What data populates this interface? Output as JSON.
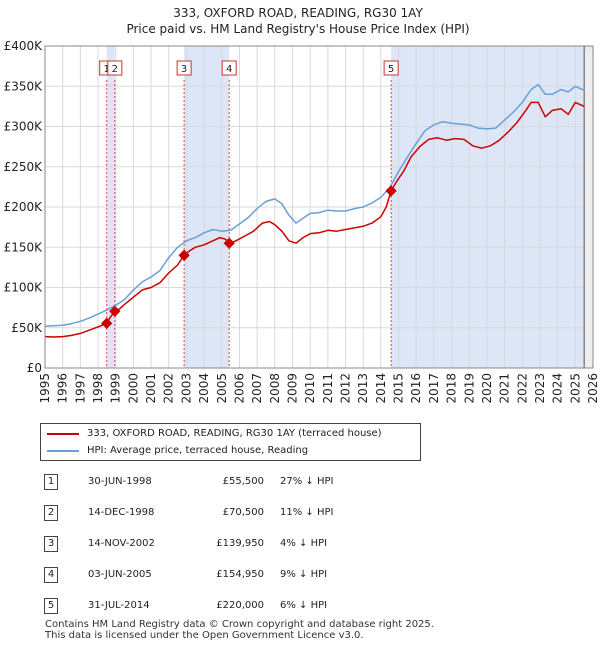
{
  "chart_data": {
    "type": "line",
    "title": "333, OXFORD ROAD, READING, RG30 1AY",
    "subtitle": "Price paid vs. HM Land Registry's House Price Index (HPI)",
    "xlabel": "",
    "ylabel": "",
    "xlim": [
      1995,
      2026
    ],
    "ylim": [
      0,
      400000
    ],
    "grid": true,
    "y_ticks": [
      {
        "value": 0,
        "label": "£0"
      },
      {
        "value": 50000,
        "label": "£50K"
      },
      {
        "value": 100000,
        "label": "£100K"
      },
      {
        "value": 150000,
        "label": "£150K"
      },
      {
        "value": 200000,
        "label": "£200K"
      },
      {
        "value": 250000,
        "label": "£250K"
      },
      {
        "value": 300000,
        "label": "£300K"
      },
      {
        "value": 350000,
        "label": "£350K"
      },
      {
        "value": 400000,
        "label": "£400K"
      }
    ],
    "x_ticks": [
      "1995",
      "1996",
      "1997",
      "1998",
      "1999",
      "2000",
      "2001",
      "2002",
      "2003",
      "2004",
      "2005",
      "2006",
      "2007",
      "2008",
      "2009",
      "2010",
      "2011",
      "2012",
      "2013",
      "2014",
      "2015",
      "2016",
      "2017",
      "2018",
      "2019",
      "2020",
      "2021",
      "2022",
      "2023",
      "2024",
      "2025",
      "2026"
    ],
    "series": [
      {
        "name": "333, OXFORD ROAD, READING, RG30 1AY (terraced house)",
        "color": "#cc0000",
        "x": [
          1995.0,
          1995.5,
          1996.0,
          1996.5,
          1997.0,
          1997.5,
          1998.0,
          1998.49,
          1998.6,
          1998.95,
          1999.2,
          1999.5,
          2000.0,
          2000.5,
          2001.0,
          2001.5,
          2002.0,
          2002.5,
          2002.87,
          2003.2,
          2003.5,
          2004.0,
          2004.5,
          2004.9,
          2005.2,
          2005.42,
          2005.8,
          2006.3,
          2006.8,
          2007.3,
          2007.7,
          2008.0,
          2008.4,
          2008.8,
          2009.2,
          2009.6,
          2010.0,
          2010.5,
          2011.0,
          2011.5,
          2012.0,
          2012.5,
          2013.0,
          2013.5,
          2014.0,
          2014.3,
          2014.58,
          2014.9,
          2015.3,
          2015.7,
          2016.2,
          2016.7,
          2017.2,
          2017.7,
          2018.2,
          2018.7,
          2019.2,
          2019.7,
          2020.2,
          2020.7,
          2021.2,
          2021.7,
          2022.2,
          2022.5,
          2022.9,
          2023.3,
          2023.7,
          2024.2,
          2024.6,
          2025.0,
          2025.5
        ],
        "values": [
          39000,
          38500,
          39000,
          40500,
          43000,
          47000,
          51000,
          55500,
          60000,
          70500,
          73000,
          79000,
          88000,
          97000,
          100000,
          106000,
          118000,
          128000,
          139950,
          146000,
          150000,
          153000,
          158000,
          162000,
          160000,
          154950,
          158000,
          164000,
          170000,
          180000,
          182000,
          178000,
          170000,
          158000,
          155000,
          162000,
          167000,
          168000,
          171000,
          170000,
          172000,
          174000,
          176000,
          180000,
          188000,
          200000,
          220000,
          232000,
          245000,
          262000,
          275000,
          284000,
          286000,
          283000,
          285000,
          284000,
          276000,
          273000,
          276000,
          283000,
          293000,
          305000,
          320000,
          330000,
          330000,
          312000,
          320000,
          322000,
          315000,
          330000,
          325000
        ]
      },
      {
        "name": "HPI: Average price, terraced house, Reading",
        "color": "#6a9fd8",
        "x": [
          1995.0,
          1995.5,
          1996.0,
          1996.5,
          1997.0,
          1997.5,
          1998.0,
          1998.5,
          1999.0,
          1999.5,
          2000.0,
          2000.5,
          2001.0,
          2001.5,
          2002.0,
          2002.5,
          2003.0,
          2003.5,
          2004.0,
          2004.5,
          2005.0,
          2005.5,
          2006.0,
          2006.5,
          2007.0,
          2007.5,
          2008.0,
          2008.4,
          2008.8,
          2009.2,
          2009.6,
          2010.0,
          2010.5,
          2011.0,
          2011.5,
          2012.0,
          2012.5,
          2013.0,
          2013.5,
          2014.0,
          2014.5,
          2015.0,
          2015.5,
          2016.0,
          2016.5,
          2017.0,
          2017.5,
          2018.0,
          2018.5,
          2019.0,
          2019.5,
          2020.0,
          2020.5,
          2021.0,
          2021.5,
          2022.0,
          2022.5,
          2022.9,
          2023.3,
          2023.7,
          2024.2,
          2024.6,
          2025.0,
          2025.5
        ],
        "values": [
          52000,
          52500,
          53000,
          55000,
          58000,
          62000,
          67000,
          72000,
          78000,
          85000,
          97000,
          107000,
          113000,
          121000,
          137000,
          150000,
          158000,
          162000,
          168000,
          172000,
          170000,
          171000,
          179000,
          187000,
          198000,
          207000,
          210000,
          204000,
          190000,
          180000,
          186000,
          192000,
          193000,
          196000,
          195000,
          195000,
          198000,
          200000,
          205000,
          212000,
          224000,
          244000,
          262000,
          279000,
          295000,
          302000,
          306000,
          304000,
          303000,
          302000,
          298000,
          297000,
          298000,
          308000,
          318000,
          330000,
          346000,
          352000,
          340000,
          340000,
          346000,
          343000,
          350000,
          345000
        ]
      }
    ],
    "sales": [
      {
        "num": "1",
        "x": 1998.49,
        "value": 55500
      },
      {
        "num": "2",
        "x": 1998.95,
        "value": 70500
      },
      {
        "num": "3",
        "x": 2002.87,
        "value": 139950
      },
      {
        "num": "4",
        "x": 2005.42,
        "value": 154950
      },
      {
        "num": "5",
        "x": 2014.58,
        "value": 220000
      }
    ],
    "shaded_ranges": [
      [
        1998.49,
        1998.95
      ],
      [
        2002.87,
        2005.42
      ],
      [
        2014.58,
        2026.0
      ]
    ],
    "forecast_from": 2025.5
  },
  "legend": [
    {
      "label": "333, OXFORD ROAD, READING, RG30 1AY (terraced house)",
      "color": "#cc0000"
    },
    {
      "label": "HPI: Average price, terraced house, Reading",
      "color": "#6a9fd8"
    }
  ],
  "sales_table": [
    {
      "num": "1",
      "date": "30-JUN-1998",
      "price": "£55,500",
      "hpi": "27% ↓ HPI"
    },
    {
      "num": "2",
      "date": "14-DEC-1998",
      "price": "£70,500",
      "hpi": "11% ↓ HPI"
    },
    {
      "num": "3",
      "date": "14-NOV-2002",
      "price": "£139,950",
      "hpi": "4% ↓ HPI"
    },
    {
      "num": "4",
      "date": "03-JUN-2005",
      "price": "£154,950",
      "hpi": "9% ↓ HPI"
    },
    {
      "num": "5",
      "date": "31-JUL-2014",
      "price": "£220,000",
      "hpi": "6% ↓ HPI"
    }
  ],
  "footer": {
    "line1": "Contains HM Land Registry data © Crown copyright and database right 2025.",
    "line2": "This data is licensed under the Open Government Licence v3.0."
  }
}
